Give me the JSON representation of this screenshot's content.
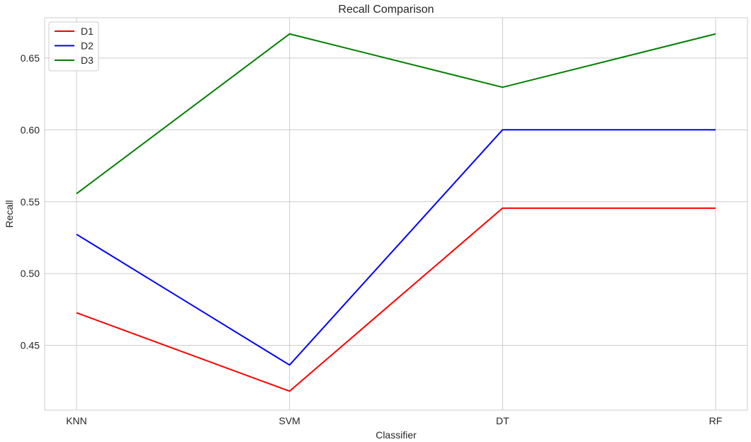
{
  "chart_data": {
    "type": "line",
    "title": "Recall Comparison",
    "xlabel": "Classifier",
    "ylabel": "Recall",
    "categories": [
      "KNN",
      "SVM",
      "DT",
      "RF"
    ],
    "ylim": [
      0.405,
      0.678
    ],
    "yticks": [
      0.45,
      0.5,
      0.55,
      0.6,
      0.65
    ],
    "ytick_labels": [
      "0.45",
      "0.50",
      "0.55",
      "0.60",
      "0.65"
    ],
    "grid": true,
    "legend_position": "top-left",
    "series": [
      {
        "name": "D1",
        "color": "#ff0000",
        "values": [
          0.4727,
          0.4182,
          0.5455,
          0.5455
        ]
      },
      {
        "name": "D2",
        "color": "#0000ff",
        "values": [
          0.5273,
          0.4364,
          0.6,
          0.6
        ]
      },
      {
        "name": "D3",
        "color": "#008000",
        "values": [
          0.5556,
          0.6667,
          0.6296,
          0.6667
        ]
      }
    ]
  }
}
